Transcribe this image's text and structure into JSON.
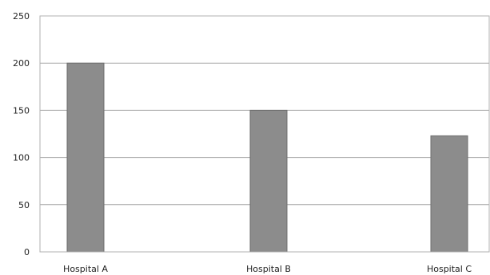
{
  "chart_data": {
    "type": "bar",
    "title": "",
    "xlabel": "",
    "ylabel": "",
    "categories": [
      "Hospital A",
      "Hospital B",
      "Hospital C"
    ],
    "values": [
      200,
      150,
      123
    ],
    "ylim": [
      0,
      250
    ],
    "yticks": [
      0,
      50,
      100,
      150,
      200,
      250
    ],
    "ytick_labels": [
      "0",
      "50",
      "100",
      "150",
      "200",
      "250"
    ],
    "grid": true,
    "legend": "none",
    "colors": {
      "bar": "#8c8c8c",
      "gridline": "#a8a8a8",
      "text": "#222222"
    }
  }
}
